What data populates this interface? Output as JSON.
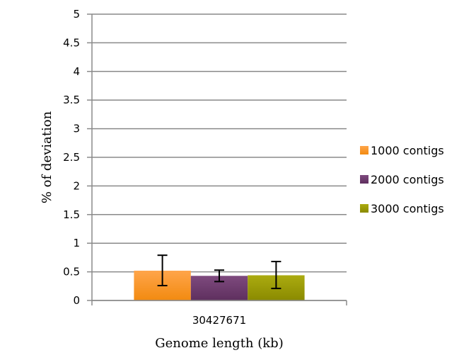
{
  "chart_data": {
    "type": "bar",
    "title": "",
    "xlabel": "Genome length (kb)",
    "ylabel": "% of deviation",
    "categories": [
      "30427671"
    ],
    "ylim": [
      0,
      5
    ],
    "yticks": [
      0,
      0.5,
      1,
      1.5,
      2,
      2.5,
      3,
      3.5,
      4,
      4.5,
      5
    ],
    "ytick_labels": [
      "0",
      "0.5",
      "1",
      "1.5",
      "2",
      "2.5",
      "3",
      "3.5",
      "4",
      "4.5",
      "5"
    ],
    "grid": true,
    "legend_position": "right",
    "series": [
      {
        "name": "1000 contigs",
        "values": [
          0.52
        ],
        "error_low": [
          0.26
        ],
        "error_high": [
          0.79
        ],
        "color": "#F7941D"
      },
      {
        "name": "2000 contigs",
        "values": [
          0.43
        ],
        "error_low": [
          0.33
        ],
        "error_high": [
          0.53
        ],
        "color": "#6E3C6E"
      },
      {
        "name": "3000 contigs",
        "values": [
          0.44
        ],
        "error_low": [
          0.21
        ],
        "error_high": [
          0.68
        ],
        "color": "#9A9A00"
      }
    ]
  }
}
